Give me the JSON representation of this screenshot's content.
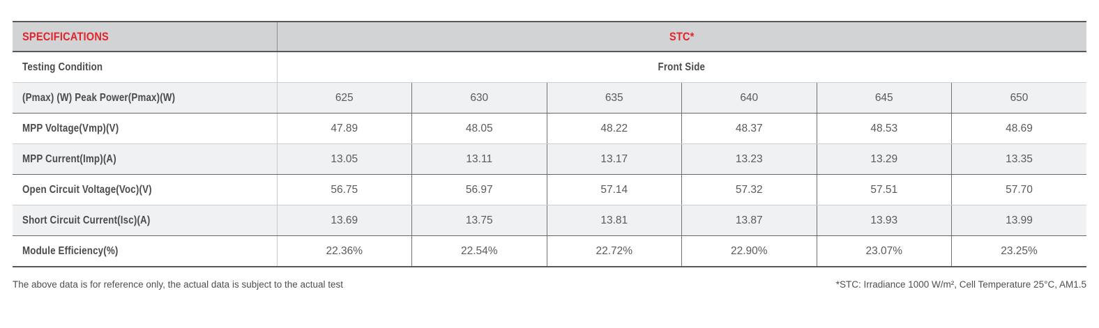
{
  "colors": {
    "accent_red": "#e1252b",
    "header_bg": "#d2d3d5",
    "alt_row_bg": "#f0f1f3",
    "label_text": "#4a4b4d",
    "data_text": "#595a5c"
  },
  "table": {
    "header": {
      "col1": "SPECIFICATIONS",
      "col2": "STC*"
    },
    "subheader": {
      "label": "Testing Condition",
      "value": "Front Side"
    },
    "rows": [
      {
        "label": "(Pmax) (W) Peak Power(Pmax)(W)",
        "values": [
          "625",
          "630",
          "635",
          "640",
          "645",
          "650"
        ]
      },
      {
        "label": "MPP Voltage(Vmp)(V)",
        "values": [
          "47.89",
          "48.05",
          "48.22",
          "48.37",
          "48.53",
          "48.69"
        ]
      },
      {
        "label": "MPP Current(Imp)(A)",
        "values": [
          "13.05",
          "13.11",
          "13.17",
          "13.23",
          "13.29",
          "13.35"
        ]
      },
      {
        "label": "Open Circuit Voltage(Voc)(V)",
        "values": [
          "56.75",
          "56.97",
          "57.14",
          "57.32",
          "57.51",
          "57.70"
        ]
      },
      {
        "label": "Short Circuit Current(Isc)(A)",
        "values": [
          "13.69",
          "13.75",
          "13.81",
          "13.87",
          "13.93",
          "13.99"
        ]
      },
      {
        "label": "Module Efficiency(%)",
        "values": [
          "22.36%",
          "22.54%",
          "22.72%",
          "22.90%",
          "23.07%",
          "23.25%"
        ]
      }
    ]
  },
  "footnotes": {
    "left": "The above data is for reference only, the actual data is subject to the actual test",
    "right": "*STC: Irradiance 1000 W/m², Cell Temperature 25°C, AM1.5"
  }
}
